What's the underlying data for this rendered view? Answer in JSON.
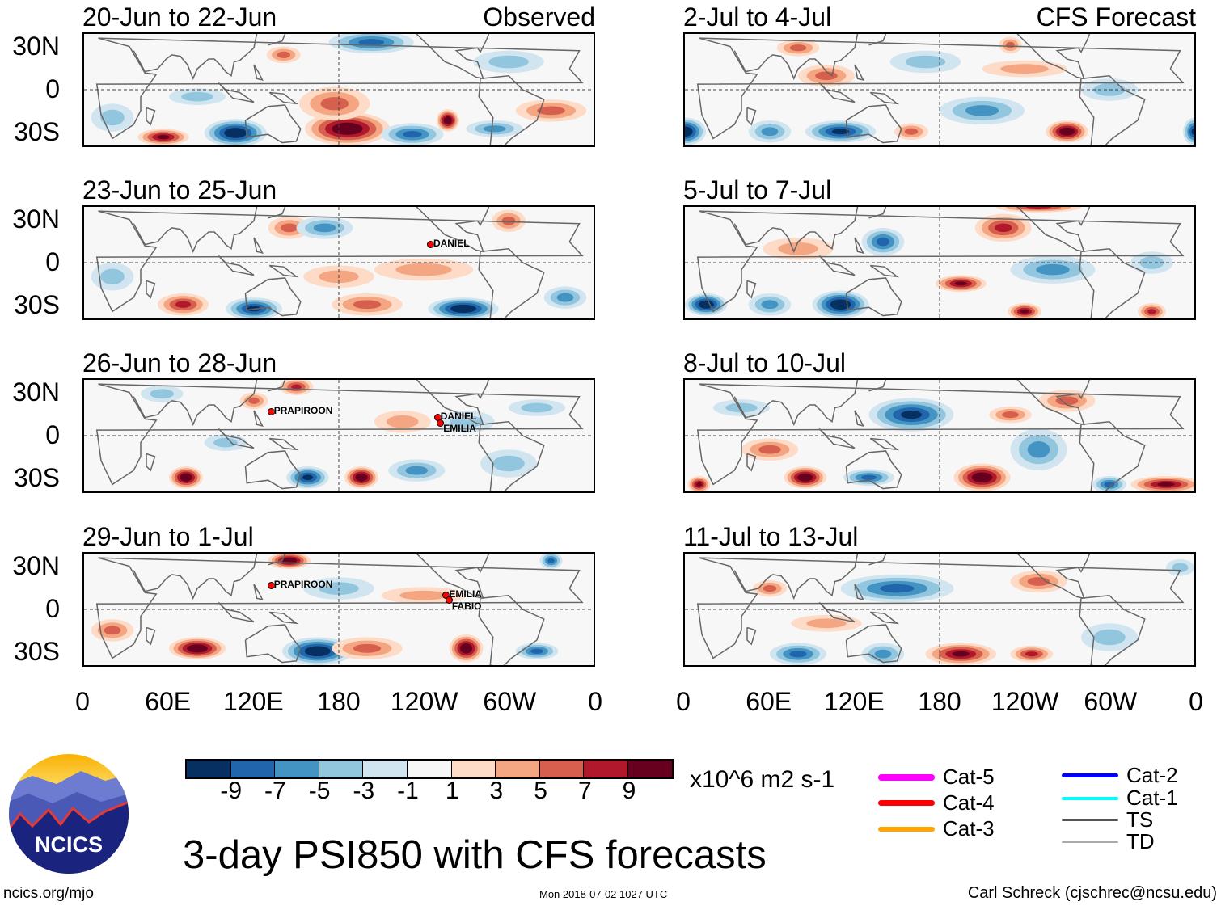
{
  "panels": [
    {
      "title": "20-Jun to 22-Jun",
      "right_label": "Observed",
      "blobs": [
        [
          186,
          -28,
          10,
          30,
          12
        ],
        [
          107,
          -31,
          -10,
          22,
          10
        ],
        [
          257,
          -22,
          10,
          8,
          8
        ],
        [
          232,
          -32,
          -7,
          22,
          8
        ],
        [
          56,
          -34,
          8,
          18,
          6
        ],
        [
          203,
          34,
          -6,
          30,
          8
        ],
        [
          141,
          25,
          4,
          12,
          6
        ],
        [
          177,
          -10,
          5,
          25,
          12
        ],
        [
          20,
          -20,
          -3,
          15,
          10
        ],
        [
          300,
          20,
          -3,
          25,
          8
        ],
        [
          80,
          -5,
          -3,
          20,
          6
        ],
        [
          330,
          -15,
          4,
          25,
          8
        ],
        [
          290,
          -28,
          -4,
          20,
          6
        ]
      ],
      "storms": []
    },
    {
      "title": "23-Jun to 25-Jun",
      "right_label": "",
      "blobs": [
        [
          120,
          -33,
          -9,
          20,
          8
        ],
        [
          268,
          -33,
          -10,
          25,
          8
        ],
        [
          70,
          -30,
          6,
          18,
          8
        ],
        [
          145,
          25,
          5,
          15,
          8
        ],
        [
          300,
          30,
          5,
          12,
          8
        ],
        [
          170,
          25,
          -4,
          20,
          8
        ],
        [
          240,
          -5,
          3,
          35,
          8
        ],
        [
          180,
          -10,
          3,
          25,
          8
        ],
        [
          20,
          -10,
          -3,
          15,
          10
        ],
        [
          340,
          -25,
          -4,
          15,
          8
        ],
        [
          200,
          -30,
          4,
          25,
          8
        ]
      ],
      "storms": [
        {
          "name": "DANIEL",
          "lon": 243,
          "lat": 14
        }
      ]
    },
    {
      "title": "26-Jun to 28-Jun",
      "right_label": "",
      "blobs": [
        [
          72,
          -30,
          10,
          12,
          8
        ],
        [
          158,
          -30,
          -8,
          15,
          8
        ],
        [
          196,
          -30,
          10,
          12,
          8
        ],
        [
          150,
          35,
          7,
          12,
          6
        ],
        [
          120,
          25,
          4,
          10,
          6
        ],
        [
          235,
          -25,
          -5,
          20,
          8
        ],
        [
          55,
          30,
          -3,
          15,
          6
        ],
        [
          270,
          10,
          -3,
          20,
          8
        ],
        [
          300,
          -20,
          -3,
          20,
          10
        ],
        [
          225,
          10,
          3,
          20,
          8
        ],
        [
          100,
          -5,
          -3,
          15,
          6
        ],
        [
          320,
          20,
          -3,
          20,
          6
        ]
      ],
      "storms": [
        {
          "name": "PRAPIROON",
          "lon": 131,
          "lat": 18
        },
        {
          "name": "DANIEL",
          "lon": 248,
          "lat": 14
        },
        {
          "name": "EMILIA",
          "lon": 250,
          "lat": 10
        }
      ]
    },
    {
      "title": "29-Jun to 1-Jul",
      "right_label": "",
      "blobs": [
        [
          80,
          -28,
          10,
          20,
          8
        ],
        [
          165,
          -30,
          -10,
          25,
          10
        ],
        [
          270,
          -28,
          10,
          12,
          10
        ],
        [
          145,
          35,
          10,
          15,
          6
        ],
        [
          320,
          -30,
          -6,
          15,
          6
        ],
        [
          200,
          -28,
          5,
          25,
          8
        ],
        [
          330,
          35,
          -6,
          8,
          6
        ],
        [
          180,
          15,
          -3,
          25,
          8
        ],
        [
          240,
          10,
          3,
          30,
          6
        ],
        [
          20,
          -15,
          4,
          15,
          8
        ]
      ],
      "storms": [
        {
          "name": "PRAPIROON",
          "lon": 131,
          "lat": 18
        },
        {
          "name": "EMILIA",
          "lon": 254,
          "lat": 11
        },
        {
          "name": "FABIO",
          "lon": 256,
          "lat": 8
        }
      ]
    },
    {
      "title": "2-Jul to 4-Jul",
      "right_label": "CFS Forecast",
      "blobs": [
        [
          0,
          -30,
          -10,
          15,
          10
        ],
        [
          360,
          -30,
          -9,
          8,
          10
        ],
        [
          270,
          -30,
          10,
          15,
          8
        ],
        [
          110,
          -30,
          -8,
          25,
          8
        ],
        [
          60,
          -30,
          -5,
          15,
          8
        ],
        [
          100,
          10,
          4,
          20,
          8
        ],
        [
          230,
          32,
          5,
          8,
          6
        ],
        [
          80,
          30,
          4,
          15,
          6
        ],
        [
          210,
          -15,
          -4,
          30,
          10
        ],
        [
          300,
          0,
          -3,
          20,
          8
        ],
        [
          240,
          15,
          3,
          30,
          6
        ],
        [
          170,
          20,
          -3,
          25,
          8
        ],
        [
          160,
          -30,
          5,
          12,
          6
        ]
      ],
      "storms": []
    },
    {
      "title": "5-Jul to 7-Jul",
      "right_label": "",
      "blobs": [
        [
          15,
          -30,
          -10,
          15,
          8
        ],
        [
          110,
          -30,
          -10,
          20,
          10
        ],
        [
          225,
          25,
          7,
          20,
          10
        ],
        [
          195,
          -15,
          8,
          18,
          6
        ],
        [
          140,
          15,
          -6,
          15,
          10
        ],
        [
          240,
          -35,
          8,
          12,
          6
        ],
        [
          330,
          -35,
          6,
          10,
          6
        ],
        [
          260,
          -5,
          -5,
          30,
          10
        ],
        [
          60,
          -30,
          -5,
          15,
          8
        ],
        [
          250,
          40,
          6,
          30,
          4
        ],
        [
          80,
          10,
          3,
          25,
          8
        ],
        [
          330,
          0,
          -3,
          15,
          8
        ]
      ],
      "storms": []
    },
    {
      "title": "8-Jul to 10-Jul",
      "right_label": "",
      "blobs": [
        [
          160,
          15,
          -9,
          30,
          12
        ],
        [
          85,
          -30,
          10,
          15,
          8
        ],
        [
          210,
          -30,
          10,
          20,
          10
        ],
        [
          340,
          -35,
          9,
          25,
          6
        ],
        [
          130,
          -30,
          -7,
          18,
          6
        ],
        [
          250,
          -10,
          -5,
          20,
          15
        ],
        [
          300,
          -35,
          -6,
          12,
          6
        ],
        [
          10,
          -35,
          8,
          8,
          6
        ],
        [
          230,
          15,
          5,
          15,
          6
        ],
        [
          270,
          25,
          4,
          20,
          8
        ],
        [
          60,
          -10,
          4,
          20,
          8
        ],
        [
          40,
          20,
          -3,
          20,
          6
        ]
      ],
      "storms": []
    },
    {
      "title": "11-Jul to 13-Jul",
      "right_label": "",
      "blobs": [
        [
          150,
          15,
          -6,
          40,
          10
        ],
        [
          195,
          -32,
          9,
          25,
          8
        ],
        [
          80,
          -32,
          -6,
          20,
          8
        ],
        [
          140,
          -32,
          -4,
          15,
          8
        ],
        [
          245,
          -32,
          6,
          15,
          6
        ],
        [
          250,
          20,
          5,
          20,
          8
        ],
        [
          300,
          -20,
          -3,
          20,
          10
        ],
        [
          100,
          -10,
          3,
          25,
          6
        ],
        [
          60,
          15,
          4,
          12,
          6
        ],
        [
          350,
          30,
          -3,
          10,
          6
        ]
      ],
      "storms": []
    }
  ],
  "lat_labels": [
    "30N",
    "0",
    "30S"
  ],
  "lon_labels": [
    "0",
    "60E",
    "120E",
    "180",
    "120W",
    "60W",
    "0"
  ],
  "colorbar": {
    "colors": [
      "#053061",
      "#2166ac",
      "#4393c3",
      "#92c5de",
      "#d1e5f0",
      "#f7f7f7",
      "#fddbc7",
      "#f4a582",
      "#d6604d",
      "#b2182b",
      "#67001f"
    ],
    "labels": [
      "-9",
      "-7",
      "-5",
      "-3",
      "-1",
      "1",
      "3",
      "5",
      "7",
      "9"
    ],
    "units": "x10^6 m2 s-1"
  },
  "legend": [
    {
      "label": "Cat-5",
      "color": "#ff00ff"
    },
    {
      "label": "Cat-4",
      "color": "#ff0000"
    },
    {
      "label": "Cat-3",
      "color": "#ffa500"
    },
    {
      "label": "Cat-2",
      "color": "#0000ff"
    },
    {
      "label": "Cat-1",
      "color": "#00ffff"
    },
    {
      "label": "TS",
      "color": "#555555"
    },
    {
      "label": "TD",
      "color": "#aaaaaa"
    }
  ],
  "title": "3-day PSI850 with CFS forecasts",
  "logo_text": "NCICS",
  "footer": {
    "url": "ncics.org/mjo",
    "timestamp": "Mon 2018-07-02 1027 UTC",
    "credit": "Carl Schreck (cjschrec@ncsu.edu)"
  }
}
